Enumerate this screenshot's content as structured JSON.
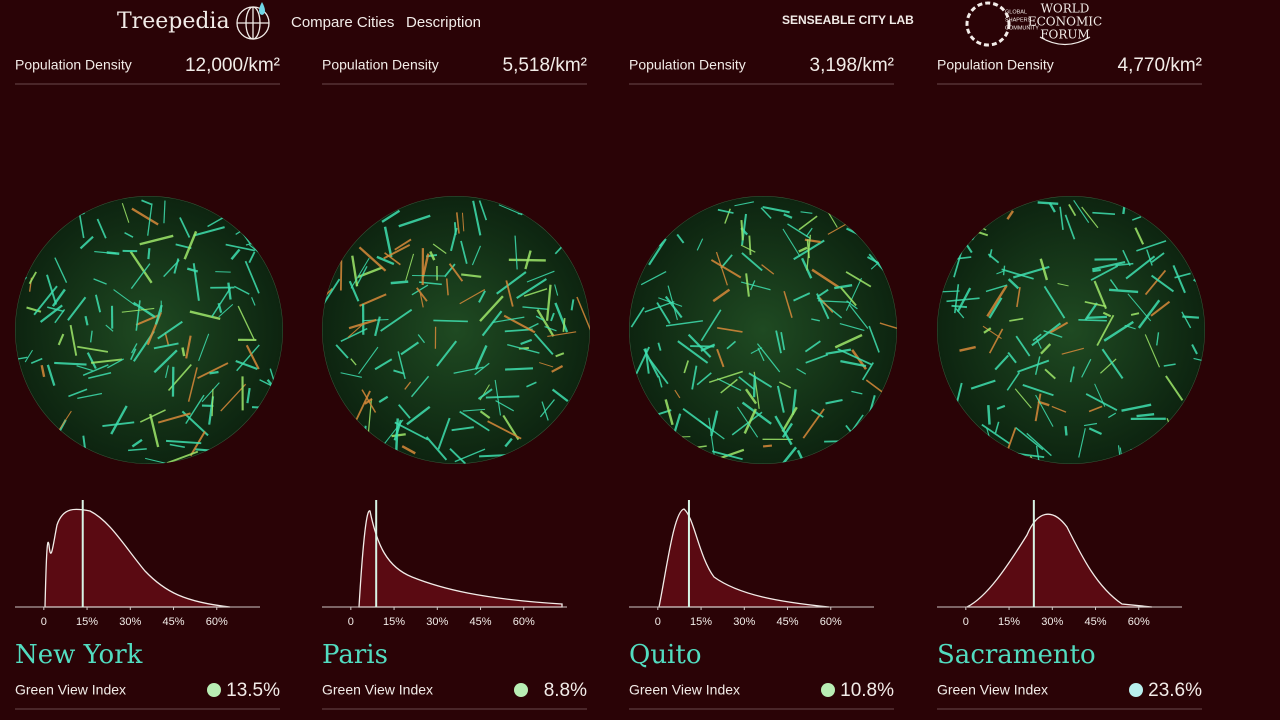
{
  "header": {
    "logo": "Treepedia",
    "nav": [
      "Compare Cities",
      "Description"
    ],
    "lab": "SENSEABLE CITY LAB",
    "shapers": [
      "GLOBAL",
      "SHAPERS",
      "COMMUNITY"
    ],
    "wef": [
      "WORLD",
      "ECONOMIC",
      "FORUM"
    ]
  },
  "distribution_axis": {
    "xlim": [
      -10,
      75
    ],
    "xticks": [
      0,
      {
        "value": 15,
        "label": "15%"
      },
      {
        "value": 30,
        "label": "30%"
      },
      {
        "value": 45,
        "label": "45%"
      },
      {
        "value": 60,
        "label": "60%"
      }
    ]
  },
  "cities": [
    {
      "name": "New York",
      "density_label": "Population Density",
      "density": "12,000/km²",
      "gvi_label": "Green View Index",
      "gvi": {
        "value": 13.5,
        "label": "13.5%"
      },
      "dot_color": "#b9eeb4"
    },
    {
      "name": "Paris",
      "density_label": "Population Density",
      "density": "5,518/km²",
      "gvi_label": "Green View Index",
      "gvi": {
        "value": 8.8,
        "label": "8.8%"
      },
      "dot_color": "#b9eeb4"
    },
    {
      "name": "Quito",
      "density_label": "Population Density",
      "density": "3,198/km²",
      "gvi_label": "Green View Index",
      "gvi": {
        "value": 10.8,
        "label": "10.8%"
      },
      "dot_color": "#b9eeb4"
    },
    {
      "name": "Sacramento",
      "density_label": "Population Density",
      "density": "4,770/km²",
      "gvi_label": "Green View Index",
      "gvi": {
        "value": 23.6,
        "label": "23.6%"
      },
      "dot_color": "#b9f0ee"
    }
  ]
}
